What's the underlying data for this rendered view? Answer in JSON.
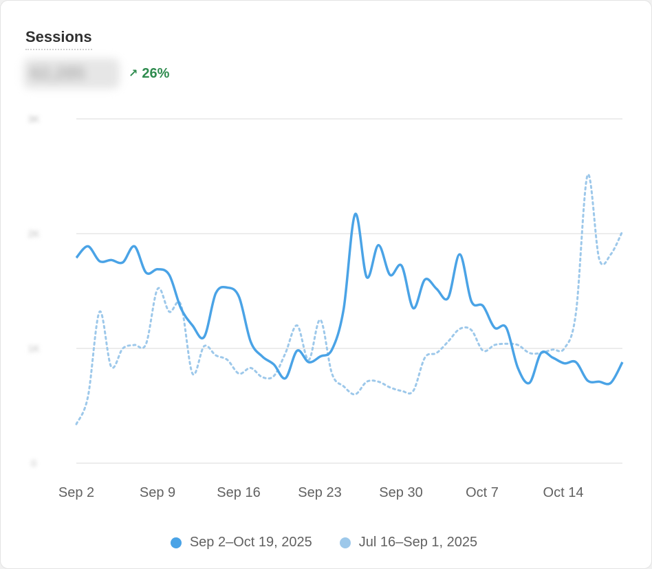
{
  "card": {
    "title": "Sessions",
    "metric_value": "62,285",
    "change_icon": "arrow-up-right-icon",
    "change_label": "26%"
  },
  "colors": {
    "current": "#4aa3e6",
    "previous": "#9dc8ea",
    "change_positive": "#2e8b4e"
  },
  "chart_data": {
    "type": "line",
    "xlabel": "",
    "ylabel": "",
    "x_ticks": [
      "Sep 2",
      "Sep 9",
      "Sep 16",
      "Sep 23",
      "Sep 30",
      "Oct 7",
      "Oct 14"
    ],
    "y_ticks": [
      "3K",
      "2K",
      "1K",
      "0"
    ],
    "ylim": [
      0,
      3000
    ],
    "grid": true,
    "legend_position": "bottom",
    "series": [
      {
        "name": "Sep 2–Oct 19, 2025",
        "style": "solid",
        "values": [
          1790,
          1890,
          1760,
          1770,
          1750,
          1890,
          1660,
          1690,
          1640,
          1350,
          1200,
          1100,
          1480,
          1530,
          1450,
          1060,
          930,
          860,
          740,
          980,
          880,
          930,
          990,
          1340,
          2170,
          1620,
          1900,
          1640,
          1720,
          1350,
          1600,
          1520,
          1440,
          1820,
          1410,
          1370,
          1180,
          1180,
          830,
          700,
          960,
          920,
          870,
          880,
          720,
          710,
          700,
          880
        ]
      },
      {
        "name": "Jul 16–Sep 1, 2025",
        "style": "dotted",
        "values": [
          340,
          580,
          1320,
          840,
          1000,
          1030,
          1040,
          1520,
          1320,
          1380,
          780,
          1020,
          940,
          900,
          780,
          830,
          750,
          760,
          960,
          1200,
          900,
          1250,
          780,
          670,
          600,
          710,
          710,
          660,
          630,
          630,
          920,
          960,
          1060,
          1170,
          1160,
          980,
          1030,
          1040,
          1030,
          960,
          960,
          990,
          1000,
          1310,
          2510,
          1780,
          1820,
          2020
        ]
      }
    ]
  }
}
